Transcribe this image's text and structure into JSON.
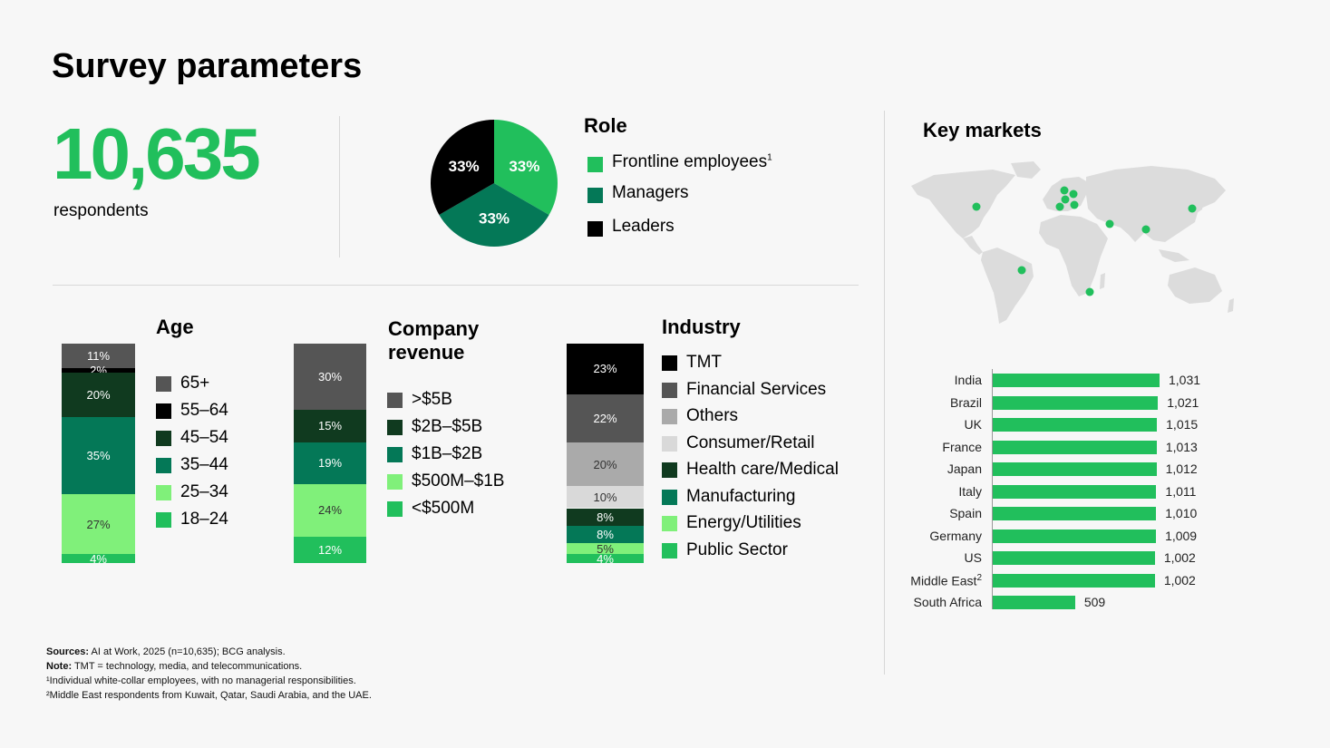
{
  "title": "Survey parameters",
  "respondents": {
    "count": "10,635",
    "label": "respondents"
  },
  "role": {
    "title": "Role",
    "slices": [
      {
        "label": "Frontline employees",
        "sup": "1",
        "value": 33,
        "text": "33%",
        "color": "#21bf5c"
      },
      {
        "label": "Managers",
        "sup": "",
        "value": 33,
        "text": "33%",
        "color": "#047857"
      },
      {
        "label": "Leaders",
        "sup": "",
        "value": 33,
        "text": "33%",
        "color": "#000000"
      }
    ]
  },
  "age": {
    "title": "Age",
    "segments": [
      {
        "label": "65+",
        "value": 11,
        "text": "11%",
        "color": "#555555"
      },
      {
        "label": "55–64",
        "value": 2,
        "text": "2%",
        "color": "#000000"
      },
      {
        "label": "45–54",
        "value": 20,
        "text": "20%",
        "color": "#103a1f"
      },
      {
        "label": "35–44",
        "value": 35,
        "text": "35%",
        "color": "#047857"
      },
      {
        "label": "25–34",
        "value": 27,
        "text": "27%",
        "color": "#80f07a"
      },
      {
        "label": "18–24",
        "value": 4,
        "text": "4%",
        "color": "#21bf5c"
      }
    ]
  },
  "revenue": {
    "title_line1": "Company",
    "title_line2": "revenue",
    "segments": [
      {
        "label": ">$5B",
        "value": 30,
        "text": "30%",
        "color": "#555555"
      },
      {
        "label": "$2B–$5B",
        "value": 15,
        "text": "15%",
        "color": "#103a1f"
      },
      {
        "label": "$1B–$2B",
        "value": 19,
        "text": "19%",
        "color": "#047857"
      },
      {
        "label": "$500M–$1B",
        "value": 24,
        "text": "24%",
        "color": "#80f07a"
      },
      {
        "label": "<$500M",
        "value": 12,
        "text": "12%",
        "color": "#21bf5c"
      }
    ]
  },
  "industry": {
    "title": "Industry",
    "segments": [
      {
        "label": "TMT",
        "value": 23,
        "text": "23%",
        "color": "#000000"
      },
      {
        "label": "Financial Services",
        "value": 22,
        "text": "22%",
        "color": "#555555"
      },
      {
        "label": "Others",
        "value": 20,
        "text": "20%",
        "color": "#aaaaaa"
      },
      {
        "label": "Consumer/Retail",
        "value": 10,
        "text": "10%",
        "color": "#d9d9d9"
      },
      {
        "label": "Health care/Medical",
        "value": 8,
        "text": "8%",
        "color": "#103a1f"
      },
      {
        "label": "Manufacturing",
        "value": 8,
        "text": "8%",
        "color": "#047857"
      },
      {
        "label": "Energy/Utilities",
        "value": 5,
        "text": "5%",
        "color": "#80f07a"
      },
      {
        "label": "Public Sector",
        "value": 4,
        "text": "4%",
        "color": "#21bf5c"
      }
    ]
  },
  "key_markets": {
    "title": "Key markets",
    "markets": [
      {
        "name": "India",
        "sup": "",
        "value": 1031,
        "text": "1,031"
      },
      {
        "name": "Brazil",
        "sup": "",
        "value": 1021,
        "text": "1,021"
      },
      {
        "name": "UK",
        "sup": "",
        "value": 1015,
        "text": "1,015"
      },
      {
        "name": "France",
        "sup": "",
        "value": 1013,
        "text": "1,013"
      },
      {
        "name": "Japan",
        "sup": "",
        "value": 1012,
        "text": "1,012"
      },
      {
        "name": "Italy",
        "sup": "",
        "value": 1011,
        "text": "1,011"
      },
      {
        "name": "Spain",
        "sup": "",
        "value": 1010,
        "text": "1,010"
      },
      {
        "name": "Germany",
        "sup": "",
        "value": 1009,
        "text": "1,009"
      },
      {
        "name": "US",
        "sup": "",
        "value": 1002,
        "text": "1,002"
      },
      {
        "name": "Middle East",
        "sup": "2",
        "value": 1002,
        "text": "1,002"
      },
      {
        "name": "South Africa",
        "sup": "",
        "value": 509,
        "text": "509"
      }
    ]
  },
  "chart_data": [
    {
      "type": "pie",
      "title": "Role",
      "categories": [
        "Frontline employees",
        "Managers",
        "Leaders"
      ],
      "values": [
        33,
        33,
        33
      ]
    },
    {
      "type": "bar",
      "title": "Age",
      "categories": [
        "65+",
        "55–64",
        "45–54",
        "35–44",
        "25–34",
        "18–24"
      ],
      "values": [
        11,
        2,
        20,
        35,
        27,
        4
      ]
    },
    {
      "type": "bar",
      "title": "Company revenue",
      "categories": [
        ">$5B",
        "$2B–$5B",
        "$1B–$2B",
        "$500M–$1B",
        "<$500M"
      ],
      "values": [
        30,
        15,
        19,
        24,
        12
      ]
    },
    {
      "type": "bar",
      "title": "Industry",
      "categories": [
        "TMT",
        "Financial Services",
        "Others",
        "Consumer/Retail",
        "Health care/Medical",
        "Manufacturing",
        "Energy/Utilities",
        "Public Sector"
      ],
      "values": [
        23,
        22,
        20,
        10,
        8,
        8,
        5,
        4
      ]
    },
    {
      "type": "bar",
      "title": "Key markets",
      "categories": [
        "India",
        "Brazil",
        "UK",
        "France",
        "Japan",
        "Italy",
        "Spain",
        "Germany",
        "US",
        "Middle East",
        "South Africa"
      ],
      "values": [
        1031,
        1021,
        1015,
        1013,
        1012,
        1011,
        1010,
        1009,
        1002,
        1002,
        509
      ]
    }
  ],
  "footnotes": {
    "sources_label": "Sources:",
    "sources_text": " AI at Work, 2025 (n=10,635); BCG analysis.",
    "note_label": "Note:",
    "note_text": " TMT = technology, media, and telecommunications.",
    "fn1": "¹Individual white-collar employees, with no managerial responsibilities.",
    "fn2": "²Middle East respondents from Kuwait, Qatar, Saudi Arabia, and the UAE."
  }
}
